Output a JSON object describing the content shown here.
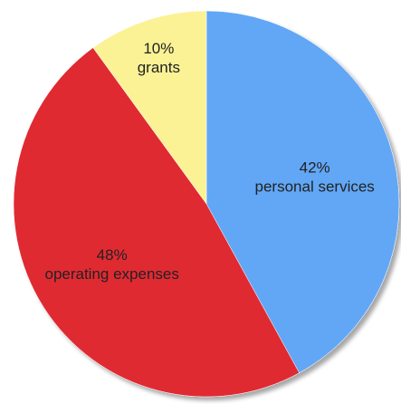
{
  "chart_data": {
    "type": "pie",
    "start_angle_deg": 0,
    "direction": "clockwise",
    "slices": [
      {
        "label": "personal services",
        "percent_label": "42%",
        "value": 42,
        "color": "#62A7F6"
      },
      {
        "label": "operating expenses",
        "percent_label": "48%",
        "value": 48,
        "color": "#E02A33"
      },
      {
        "label": "grants",
        "percent_label": "10%",
        "value": 10,
        "color": "#FBF295"
      }
    ]
  }
}
